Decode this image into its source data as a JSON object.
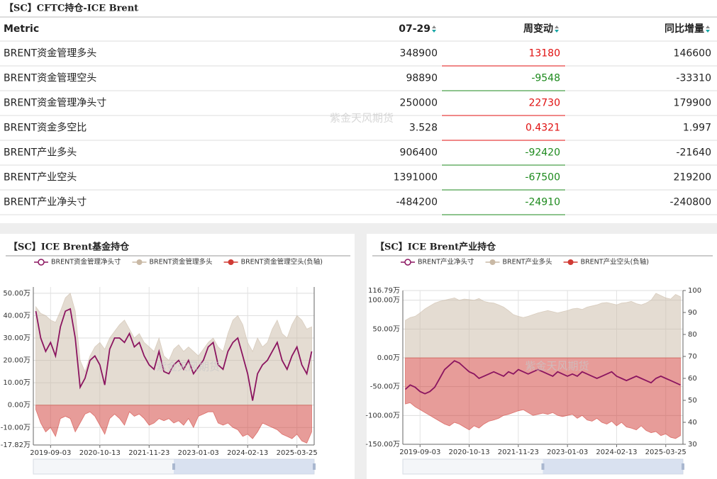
{
  "table": {
    "title": "【SC】CFTC持仓-ICE Brent",
    "watermark": "紫金天风期货",
    "columns": [
      "Metric",
      "07-29",
      "周变动",
      "同比增量"
    ],
    "rows": [
      [
        "BRENT资金管理多头",
        348900,
        13180,
        146600
      ],
      [
        "BRENT资金管理空头",
        98890,
        -9548,
        -33310
      ],
      [
        "BRENT资金管理净头寸",
        250000,
        22730,
        179900
      ],
      [
        "BRENT资金多空比",
        3.528,
        0.4321,
        1.997
      ],
      [
        "BRENT产业多头",
        906400,
        -92420,
        -21640
      ],
      [
        "BRENT产业空头",
        1391000,
        -67500,
        219200
      ],
      [
        "BRENT产业净头寸",
        -484200,
        -24910,
        -240800
      ]
    ]
  },
  "chart_data": [
    {
      "type": "area",
      "title": "【SC】ICE Brent基金持仓",
      "watermark": "紫金天风期货",
      "categories": [
        null,
        null,
        null,
        "2019-09-03",
        null,
        null,
        null,
        null,
        null,
        null,
        null,
        null,
        null,
        "2020-10-13",
        null,
        null,
        null,
        null,
        null,
        null,
        null,
        null,
        null,
        "2021-11-23",
        null,
        null,
        null,
        null,
        null,
        null,
        null,
        null,
        null,
        "2023-01-03",
        null,
        null,
        null,
        null,
        null,
        null,
        null,
        null,
        null,
        "2024-02-13",
        null,
        null,
        null,
        null,
        null,
        null,
        null,
        null,
        null,
        "2025-03-25",
        null,
        null,
        null
      ],
      "ylim": [
        -17.82,
        52.8
      ],
      "yticks": [
        {
          "value": -17.82,
          "label": "-17.82万"
        },
        {
          "value": -10,
          "label": "-10.00万"
        },
        {
          "value": 0,
          "label": "0.00万"
        },
        {
          "value": 10,
          "label": "10.00万"
        },
        {
          "value": 20,
          "label": "20.00万"
        },
        {
          "value": 30,
          "label": "30.00万"
        },
        {
          "value": 40,
          "label": "40.00万"
        },
        {
          "value": 50,
          "label": "50.00万"
        }
      ],
      "grid": true,
      "series": [
        {
          "name": "BRENT资金管理净头寸",
          "type": "line",
          "color": "#8b1560",
          "values": [
            42,
            30,
            24,
            28,
            22,
            35,
            42,
            43,
            30,
            8,
            12,
            20,
            22,
            18,
            9,
            25,
            30,
            30,
            28,
            32,
            26,
            28,
            22,
            18,
            16,
            24,
            15,
            14,
            18,
            20,
            16,
            20,
            14,
            17,
            20,
            26,
            28,
            18,
            16,
            24,
            28,
            30,
            22,
            14,
            2,
            14,
            18,
            20,
            24,
            28,
            20,
            16,
            22,
            26,
            18,
            14,
            24
          ]
        },
        {
          "name": "BRENT资金管理多头",
          "type": "area",
          "color": "#c9b9a5",
          "values": [
            44,
            41,
            40,
            38,
            37,
            42,
            48,
            50,
            42,
            20,
            15,
            22,
            26,
            28,
            25,
            30,
            33,
            36,
            38,
            34,
            30,
            32,
            28,
            26,
            24,
            30,
            22,
            20,
            25,
            27,
            24,
            26,
            24,
            22,
            25,
            28,
            30,
            26,
            24,
            32,
            38,
            40,
            36,
            28,
            24,
            30,
            26,
            28,
            34,
            38,
            32,
            30,
            36,
            40,
            38,
            34,
            35
          ]
        },
        {
          "name": "BRENT资金管理空头(负轴)",
          "type": "area",
          "color": "#d03a34",
          "values": [
            -2,
            -8,
            -12,
            -10,
            -14,
            -6,
            -5,
            -6,
            -12,
            -8,
            -4,
            -3,
            -5,
            -9,
            -13,
            -6,
            -4,
            -6,
            -9,
            -3,
            -5,
            -4,
            -6,
            -9,
            -8,
            -6,
            -7,
            -6,
            -8,
            -7,
            -9,
            -6,
            -10,
            -5,
            -4,
            -3,
            -3,
            -8,
            -9,
            -8,
            -10,
            -11,
            -14,
            -13,
            -15,
            -12,
            -8,
            -9,
            -10,
            -11,
            -13,
            -14,
            -15,
            -13,
            -16,
            -17,
            -12
          ]
        }
      ]
    },
    {
      "type": "area",
      "title": "【SC】ICE Brent产业持仓",
      "watermark": "紫金天风期货",
      "categories": [
        null,
        null,
        null,
        "2019-09-03",
        null,
        null,
        null,
        null,
        null,
        null,
        null,
        null,
        null,
        "2020-10-13",
        null,
        null,
        null,
        null,
        null,
        null,
        null,
        null,
        null,
        "2021-11-23",
        null,
        null,
        null,
        null,
        null,
        null,
        null,
        null,
        null,
        "2023-01-03",
        null,
        null,
        null,
        null,
        null,
        null,
        null,
        null,
        null,
        "2024-02-13",
        null,
        null,
        null,
        null,
        null,
        null,
        null,
        null,
        null,
        "2025-03-25",
        null,
        null,
        null
      ],
      "ylim": [
        -150,
        116.79
      ],
      "yticks": [
        {
          "value": -150,
          "label": "-150.00万"
        },
        {
          "value": -100,
          "label": "-100.00万"
        },
        {
          "value": -50,
          "label": "-50.00万"
        },
        {
          "value": 0,
          "label": "0.00万"
        },
        {
          "value": 50,
          "label": "50.00万"
        },
        {
          "value": 100,
          "label": "100.00万"
        },
        {
          "value": 116.79,
          "label": "116.79万"
        }
      ],
      "y2lim": [
        30,
        100
      ],
      "y2ticks": [
        30,
        40,
        50,
        60,
        70,
        80,
        90,
        100
      ],
      "grid": true,
      "series": [
        {
          "name": "BRENT产业净头寸",
          "type": "line",
          "axis": "y2",
          "color": "#8b1560",
          "values": [
            55,
            57,
            56,
            54,
            53,
            54,
            56,
            60,
            64,
            66,
            68,
            67,
            65,
            63,
            62,
            60,
            61,
            62,
            63,
            62,
            61,
            63,
            62,
            64,
            63,
            62,
            63,
            64,
            63,
            62,
            61,
            63,
            62,
            61,
            62,
            61,
            63,
            62,
            61,
            60,
            61,
            62,
            63,
            61,
            60,
            59,
            60,
            61,
            60,
            59,
            58,
            60,
            61,
            60,
            59,
            58,
            57
          ]
        },
        {
          "name": "BRENT产业多头",
          "type": "area",
          "color": "#c9b9a5",
          "values": [
            65,
            70,
            72,
            78,
            85,
            90,
            95,
            98,
            100,
            102,
            104,
            100,
            102,
            101,
            100,
            103,
            98,
            96,
            95,
            92,
            88,
            82,
            75,
            72,
            70,
            72,
            75,
            78,
            80,
            82,
            80,
            78,
            80,
            82,
            85,
            86,
            84,
            88,
            90,
            92,
            95,
            96,
            94,
            92,
            95,
            96,
            98,
            94,
            92,
            95,
            100,
            112,
            108,
            104,
            102,
            110,
            106
          ]
        },
        {
          "name": "BRENT产业空头(负轴)",
          "type": "area",
          "color": "#d03a34",
          "values": [
            -80,
            -78,
            -85,
            -90,
            -95,
            -100,
            -105,
            -110,
            -115,
            -118,
            -112,
            -115,
            -120,
            -125,
            -118,
            -122,
            -115,
            -110,
            -108,
            -105,
            -100,
            -98,
            -95,
            -92,
            -90,
            -95,
            -100,
            -98,
            -96,
            -98,
            -95,
            -100,
            -102,
            -100,
            -98,
            -105,
            -100,
            -108,
            -110,
            -105,
            -112,
            -115,
            -110,
            -118,
            -112,
            -120,
            -122,
            -125,
            -118,
            -126,
            -130,
            -128,
            -135,
            -132,
            -138,
            -140,
            -135
          ]
        }
      ]
    }
  ]
}
